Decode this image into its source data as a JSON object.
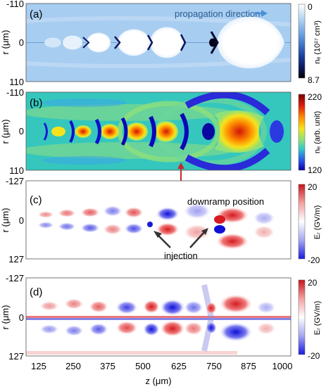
{
  "figure": {
    "panels": [
      {
        "id": "a",
        "label": "(a)",
        "y_ticks": [
          "-110",
          "0",
          "110"
        ],
        "y_axis_label": "r (μm)",
        "annotation": "propagation direction",
        "colorbar": {
          "max_label": "0",
          "min_label": "8.7",
          "title": "nₑ (10¹⁷ cm³)",
          "stops": [
            "#ffffff",
            "#bcd9f5",
            "#5b95d9",
            "#1a3f9e",
            "#0a1550",
            "#000000"
          ]
        }
      },
      {
        "id": "b",
        "label": "(b)",
        "y_ticks": [
          "-110",
          "0",
          "110"
        ],
        "y_axis_label": "r (μm)",
        "colorbar": {
          "max_label": "220",
          "min_label": "120",
          "title": "nₑ (arb. unit)",
          "stops": [
            "#7a0000",
            "#e01b0b",
            "#ff8a00",
            "#f6e21c",
            "#8ee07a",
            "#33c9c7",
            "#2a55e8",
            "#0a00a8"
          ]
        }
      },
      {
        "id": "c",
        "label": "(c)",
        "y_ticks": [
          "-127",
          "0",
          "127"
        ],
        "y_axis_label": "r (μm)",
        "annotations": [
          "downramp position",
          "injection"
        ],
        "colorbar": {
          "max_label": "20",
          "min_label": "-20",
          "title": "Eᵣ (GV/m)",
          "stops": [
            "#c4161c",
            "#f3a0a0",
            "#ffffff",
            "#a6a6f2",
            "#1a1ae0"
          ]
        }
      },
      {
        "id": "d",
        "label": "(d)",
        "y_ticks": [
          "-127",
          "0",
          "127"
        ],
        "y_axis_label": "r (μm)",
        "colorbar": {
          "max_label": "20",
          "min_label": "-20",
          "title": "Eᵣ (GV/m)",
          "stops": [
            "#c4161c",
            "#f3a0a0",
            "#ffffff",
            "#a6a6f2",
            "#1a1ae0"
          ]
        }
      }
    ],
    "x_axis": {
      "label": "z (μm)",
      "ticks": [
        "125",
        "250",
        "375",
        "500",
        "625",
        "750",
        "875",
        "1000"
      ]
    },
    "colors": {
      "arrow_blue": "#4a8fd6",
      "arrow_red": "#c8282e",
      "arrow_dark": "#333333"
    }
  }
}
